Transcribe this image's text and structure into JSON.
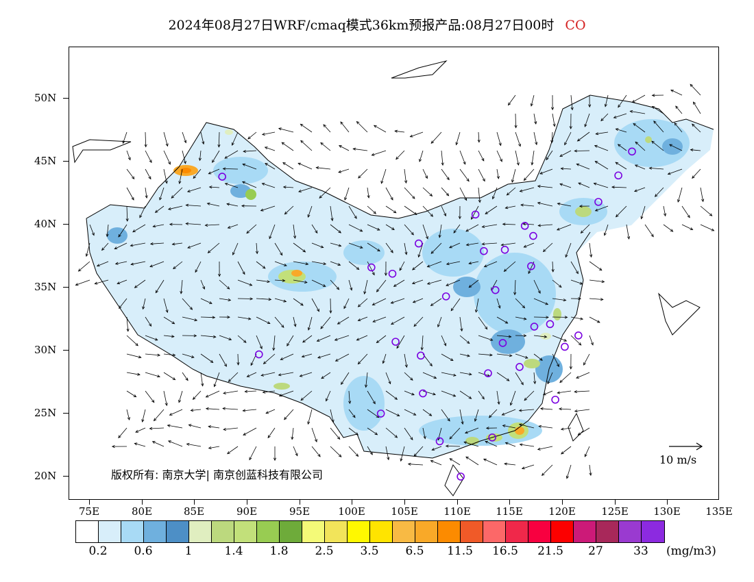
{
  "title": {
    "main": "2024年08月27日WRF/cmaq模式36km预报产品:08月27日00时",
    "species": "CO"
  },
  "axes": {
    "y_labels": [
      "50N",
      "45N",
      "40N",
      "35N",
      "30N",
      "25N",
      "20N"
    ],
    "x_labels": [
      "75E",
      "80E",
      "85E",
      "90E",
      "95E",
      "100E",
      "105E",
      "110E",
      "115E",
      "120E",
      "125E",
      "130E",
      "135E"
    ]
  },
  "copyright": "版权所有: 南京大学| 南京创蓝科技有限公司",
  "wind_reference": {
    "label": "10 m/s"
  },
  "colorbar": {
    "colors": [
      "#ffffff",
      "#d8eefa",
      "#a8daf5",
      "#6fb0de",
      "#4d8fc6",
      "#e0eec0",
      "#bcd97e",
      "#c2e07a",
      "#98cc52",
      "#6eab3a",
      "#f4fa78",
      "#f2e45a",
      "#fff800",
      "#ffe400",
      "#f8ba44",
      "#f9a928",
      "#fc8b00",
      "#f05a28",
      "#fc6868",
      "#f0284a",
      "#f80040",
      "#fc0000",
      "#cc1a78",
      "#a8285a",
      "#9a3ad0",
      "#8c2ae0"
    ],
    "labels": [
      "0.2",
      "0.6",
      "1",
      "1.4",
      "1.8",
      "2.5",
      "3.5",
      "6.5",
      "11.5",
      "16.5",
      "21.5",
      "27",
      "33"
    ],
    "unit": "(mg/m3)"
  },
  "stations": [
    {
      "lon": 87.6,
      "lat": 43.8
    },
    {
      "lon": 91.1,
      "lat": 29.7
    },
    {
      "lon": 101.8,
      "lat": 36.6
    },
    {
      "lon": 103.8,
      "lat": 36.1
    },
    {
      "lon": 106.3,
      "lat": 38.5
    },
    {
      "lon": 111.7,
      "lat": 40.8
    },
    {
      "lon": 112.5,
      "lat": 37.9
    },
    {
      "lon": 114.5,
      "lat": 38.0
    },
    {
      "lon": 116.4,
      "lat": 39.9
    },
    {
      "lon": 117.2,
      "lat": 39.1
    },
    {
      "lon": 117.0,
      "lat": 36.7
    },
    {
      "lon": 113.6,
      "lat": 34.8
    },
    {
      "lon": 108.9,
      "lat": 34.3
    },
    {
      "lon": 104.1,
      "lat": 30.7
    },
    {
      "lon": 106.5,
      "lat": 29.6
    },
    {
      "lon": 106.7,
      "lat": 26.6
    },
    {
      "lon": 102.7,
      "lat": 25.0
    },
    {
      "lon": 108.3,
      "lat": 22.8
    },
    {
      "lon": 110.3,
      "lat": 20.0
    },
    {
      "lon": 113.3,
      "lat": 23.1
    },
    {
      "lon": 112.9,
      "lat": 28.2
    },
    {
      "lon": 114.3,
      "lat": 30.6
    },
    {
      "lon": 115.9,
      "lat": 28.7
    },
    {
      "lon": 117.3,
      "lat": 31.9
    },
    {
      "lon": 118.8,
      "lat": 32.1
    },
    {
      "lon": 120.2,
      "lat": 30.3
    },
    {
      "lon": 121.5,
      "lat": 31.2
    },
    {
      "lon": 119.3,
      "lat": 26.1
    },
    {
      "lon": 123.4,
      "lat": 41.8
    },
    {
      "lon": 125.3,
      "lat": 43.9
    },
    {
      "lon": 126.6,
      "lat": 45.8
    }
  ]
}
